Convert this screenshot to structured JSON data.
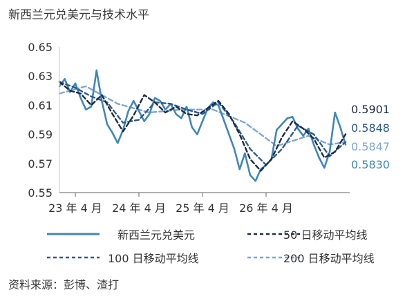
{
  "title": "新西兰元兑美元与技术水平",
  "source": "资料来源：彭博、渣打",
  "colors": {
    "spot": "#3f86b9",
    "ma50": "#1c2a44",
    "ma100": "#2c5a8a",
    "ma200": "#7ea6d2"
  },
  "chart_data": {
    "type": "line",
    "ylim": [
      0.55,
      0.65
    ],
    "yticks": [
      "0.65",
      "0.63",
      "0.61",
      "0.59",
      "0.57",
      "0.55"
    ],
    "xticks": [
      "23 年 4 月",
      "24 年 4 月",
      "25 年 4 月",
      "26 年 4 月"
    ],
    "end_labels": [
      "0.5901",
      "0.5848",
      "0.5847",
      "0.5830"
    ],
    "series": [
      {
        "name": "新西兰元兑美元",
        "key": "spot",
        "style": "solid",
        "points": [
          [
            "2023-01",
            0.623
          ],
          [
            "2023-02",
            0.628
          ],
          [
            "2023-03",
            0.619
          ],
          [
            "2023-04",
            0.625
          ],
          [
            "2023-05",
            0.615
          ],
          [
            "2023-06",
            0.607
          ],
          [
            "2023-07",
            0.609
          ],
          [
            "2023-08",
            0.634
          ],
          [
            "2023-09",
            0.613
          ],
          [
            "2023-10",
            0.597
          ],
          [
            "2023-11",
            0.591
          ],
          [
            "2023-12",
            0.584
          ],
          [
            "2024-01",
            0.593
          ],
          [
            "2024-02",
            0.606
          ],
          [
            "2024-03",
            0.613
          ],
          [
            "2024-04",
            0.606
          ],
          [
            "2024-05",
            0.599
          ],
          [
            "2024-06",
            0.604
          ],
          [
            "2024-07",
            0.615
          ],
          [
            "2024-08",
            0.613
          ],
          [
            "2024-09",
            0.607
          ],
          [
            "2024-10",
            0.611
          ],
          [
            "2024-11",
            0.604
          ],
          [
            "2024-12",
            0.601
          ],
          [
            "2025-01",
            0.609
          ],
          [
            "2025-02",
            0.595
          ],
          [
            "2025-03",
            0.59
          ],
          [
            "2025-04",
            0.599
          ],
          [
            "2025-05",
            0.608
          ],
          [
            "2025-06",
            0.612
          ],
          [
            "2025-07",
            0.61
          ],
          [
            "2025-08",
            0.6
          ],
          [
            "2025-09",
            0.59
          ],
          [
            "2025-10",
            0.58
          ],
          [
            "2025-11",
            0.566
          ],
          [
            "2025-12",
            0.577
          ],
          [
            "2026-01",
            0.562
          ],
          [
            "2026-02",
            0.558
          ],
          [
            "2026-03",
            0.566
          ],
          [
            "2026-04",
            0.569
          ],
          [
            "2026-05",
            0.573
          ],
          [
            "2026-06",
            0.593
          ],
          [
            "2026-07",
            0.597
          ],
          [
            "2026-08",
            0.601
          ],
          [
            "2026-09",
            0.602
          ],
          [
            "2026-10",
            0.594
          ],
          [
            "2026-11",
            0.589
          ],
          [
            "2026-12",
            0.594
          ],
          [
            "2027-01",
            0.583
          ],
          [
            "2027-02",
            0.574
          ],
          [
            "2027-03",
            0.567
          ],
          [
            "2027-04",
            0.578
          ],
          [
            "2027-05",
            0.605
          ],
          [
            "2027-06",
            0.595
          ],
          [
            "2027-07",
            0.583
          ]
        ]
      },
      {
        "name": "50 日移动平均线",
        "key": "ma50",
        "style": "dash",
        "points": [
          [
            "2023-01",
            0.626
          ],
          [
            "2023-03",
            0.62
          ],
          [
            "2023-05",
            0.618
          ],
          [
            "2023-07",
            0.61
          ],
          [
            "2023-09",
            0.617
          ],
          [
            "2023-11",
            0.604
          ],
          [
            "2024-01",
            0.592
          ],
          [
            "2024-03",
            0.603
          ],
          [
            "2024-05",
            0.617
          ],
          [
            "2024-07",
            0.612
          ],
          [
            "2024-09",
            0.605
          ],
          [
            "2024-11",
            0.609
          ],
          [
            "2025-01",
            0.604
          ],
          [
            "2025-03",
            0.603
          ],
          [
            "2025-05",
            0.608
          ],
          [
            "2025-07",
            0.613
          ],
          [
            "2025-09",
            0.604
          ],
          [
            "2025-11",
            0.59
          ],
          [
            "2026-01",
            0.573
          ],
          [
            "2026-03",
            0.565
          ],
          [
            "2026-05",
            0.573
          ],
          [
            "2026-07",
            0.588
          ],
          [
            "2026-09",
            0.599
          ],
          [
            "2026-11",
            0.594
          ],
          [
            "2027-01",
            0.587
          ],
          [
            "2027-03",
            0.574
          ],
          [
            "2027-05",
            0.578
          ],
          [
            "2027-07",
            0.5901
          ]
        ]
      },
      {
        "name": "100 日移动平均线",
        "key": "ma100",
        "style": "dash",
        "points": [
          [
            "2023-01",
            0.626
          ],
          [
            "2023-04",
            0.622
          ],
          [
            "2023-07",
            0.616
          ],
          [
            "2023-10",
            0.612
          ],
          [
            "2024-01",
            0.598
          ],
          [
            "2024-04",
            0.6
          ],
          [
            "2024-07",
            0.612
          ],
          [
            "2024-10",
            0.611
          ],
          [
            "2025-01",
            0.607
          ],
          [
            "2025-04",
            0.604
          ],
          [
            "2025-07",
            0.612
          ],
          [
            "2025-10",
            0.598
          ],
          [
            "2026-01",
            0.58
          ],
          [
            "2026-04",
            0.569
          ],
          [
            "2026-07",
            0.58
          ],
          [
            "2026-10",
            0.596
          ],
          [
            "2027-01",
            0.59
          ],
          [
            "2027-04",
            0.575
          ],
          [
            "2027-07",
            0.5848
          ]
        ]
      },
      {
        "name": "200 日移动平均线",
        "key": "ma200",
        "style": "dash",
        "points": [
          [
            "2023-01",
            0.618
          ],
          [
            "2023-06",
            0.623
          ],
          [
            "2023-12",
            0.611
          ],
          [
            "2024-06",
            0.605
          ],
          [
            "2024-12",
            0.607
          ],
          [
            "2025-06",
            0.607
          ],
          [
            "2025-12",
            0.598
          ],
          [
            "2026-06",
            0.582
          ],
          [
            "2026-12",
            0.589
          ],
          [
            "2027-04",
            0.583
          ],
          [
            "2027-07",
            0.5847
          ]
        ]
      }
    ]
  }
}
